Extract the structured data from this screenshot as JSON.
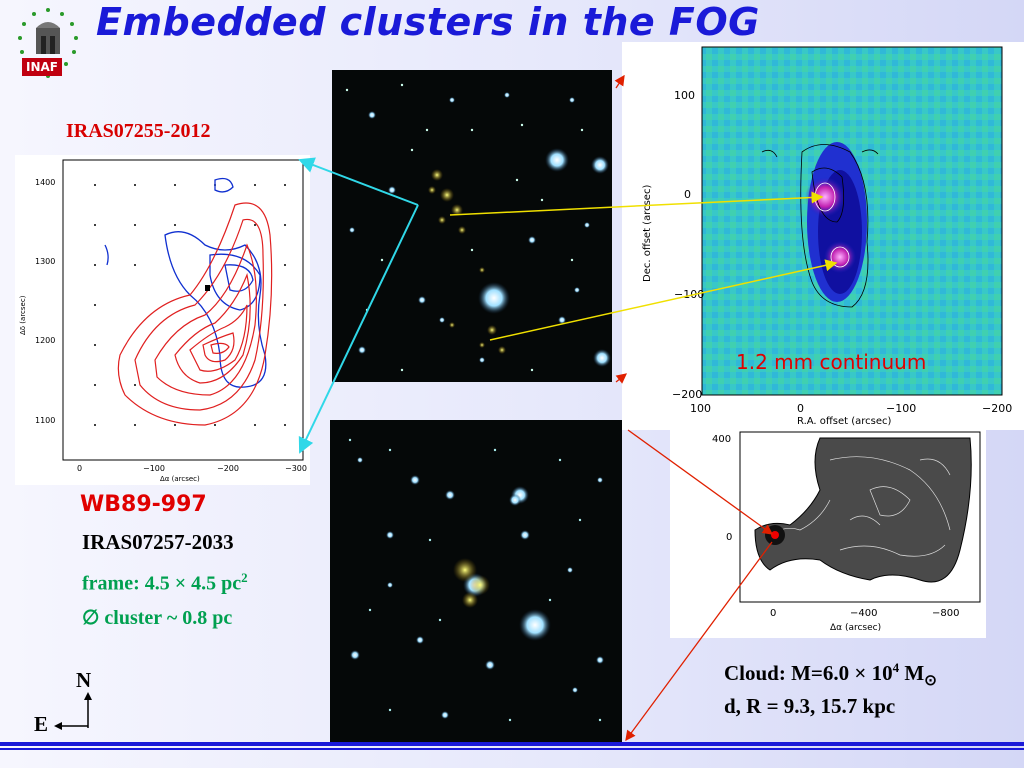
{
  "title": "Embedded clusters in the FOG",
  "logo": {
    "text": "INAF"
  },
  "iras1_label": "IRAS07255-2012",
  "wb_label": "WB89-997",
  "iras2_label": "IRAS07257-2033",
  "frame_text": "frame: 4.5 × 4.5 pc",
  "frame_sup": "2",
  "cluster_text": "∅ cluster ~ 0.8 pc",
  "mm_label": "1.2 mm continuum",
  "cloud_line1_prefix": "Cloud: M=6.0 × 10",
  "cloud_line1_sup": "4",
  "cloud_line1_suffix": " M",
  "cloud_line1_sub": "⊙",
  "cloud_line2": "d, R = 9.3, 15.7 kpc",
  "compass": {
    "north": "N",
    "east": "E"
  },
  "contour_plot": {
    "yticks": [
      "1400",
      "1300",
      "1200",
      "1100"
    ],
    "xticks": [
      "0",
      "−100",
      "−200",
      "−300"
    ],
    "ylabel": "Δδ (arcsec)",
    "xlabel": "Δα (arcsec)"
  },
  "mm_plot": {
    "yticks": [
      "100",
      "0",
      "−100",
      "−200"
    ],
    "xticks": [
      "100",
      "0",
      "−100",
      "−200"
    ],
    "ylabel": "Dec. offset (arcsec)",
    "xlabel": "R.A. offset (arcsec)"
  },
  "cloud_map": {
    "yticks": [
      "400",
      "0"
    ],
    "xticks": [
      "0",
      "−400",
      "−800"
    ],
    "xlabel": "Δα (arcsec)"
  },
  "colors": {
    "title": "#1a1ad8",
    "red_label": "#d80000",
    "green_label": "#00a050",
    "cyan_arrow": "#30d8e8",
    "yellow_arrow": "#f0e000",
    "red_arrow": "#e02000"
  }
}
